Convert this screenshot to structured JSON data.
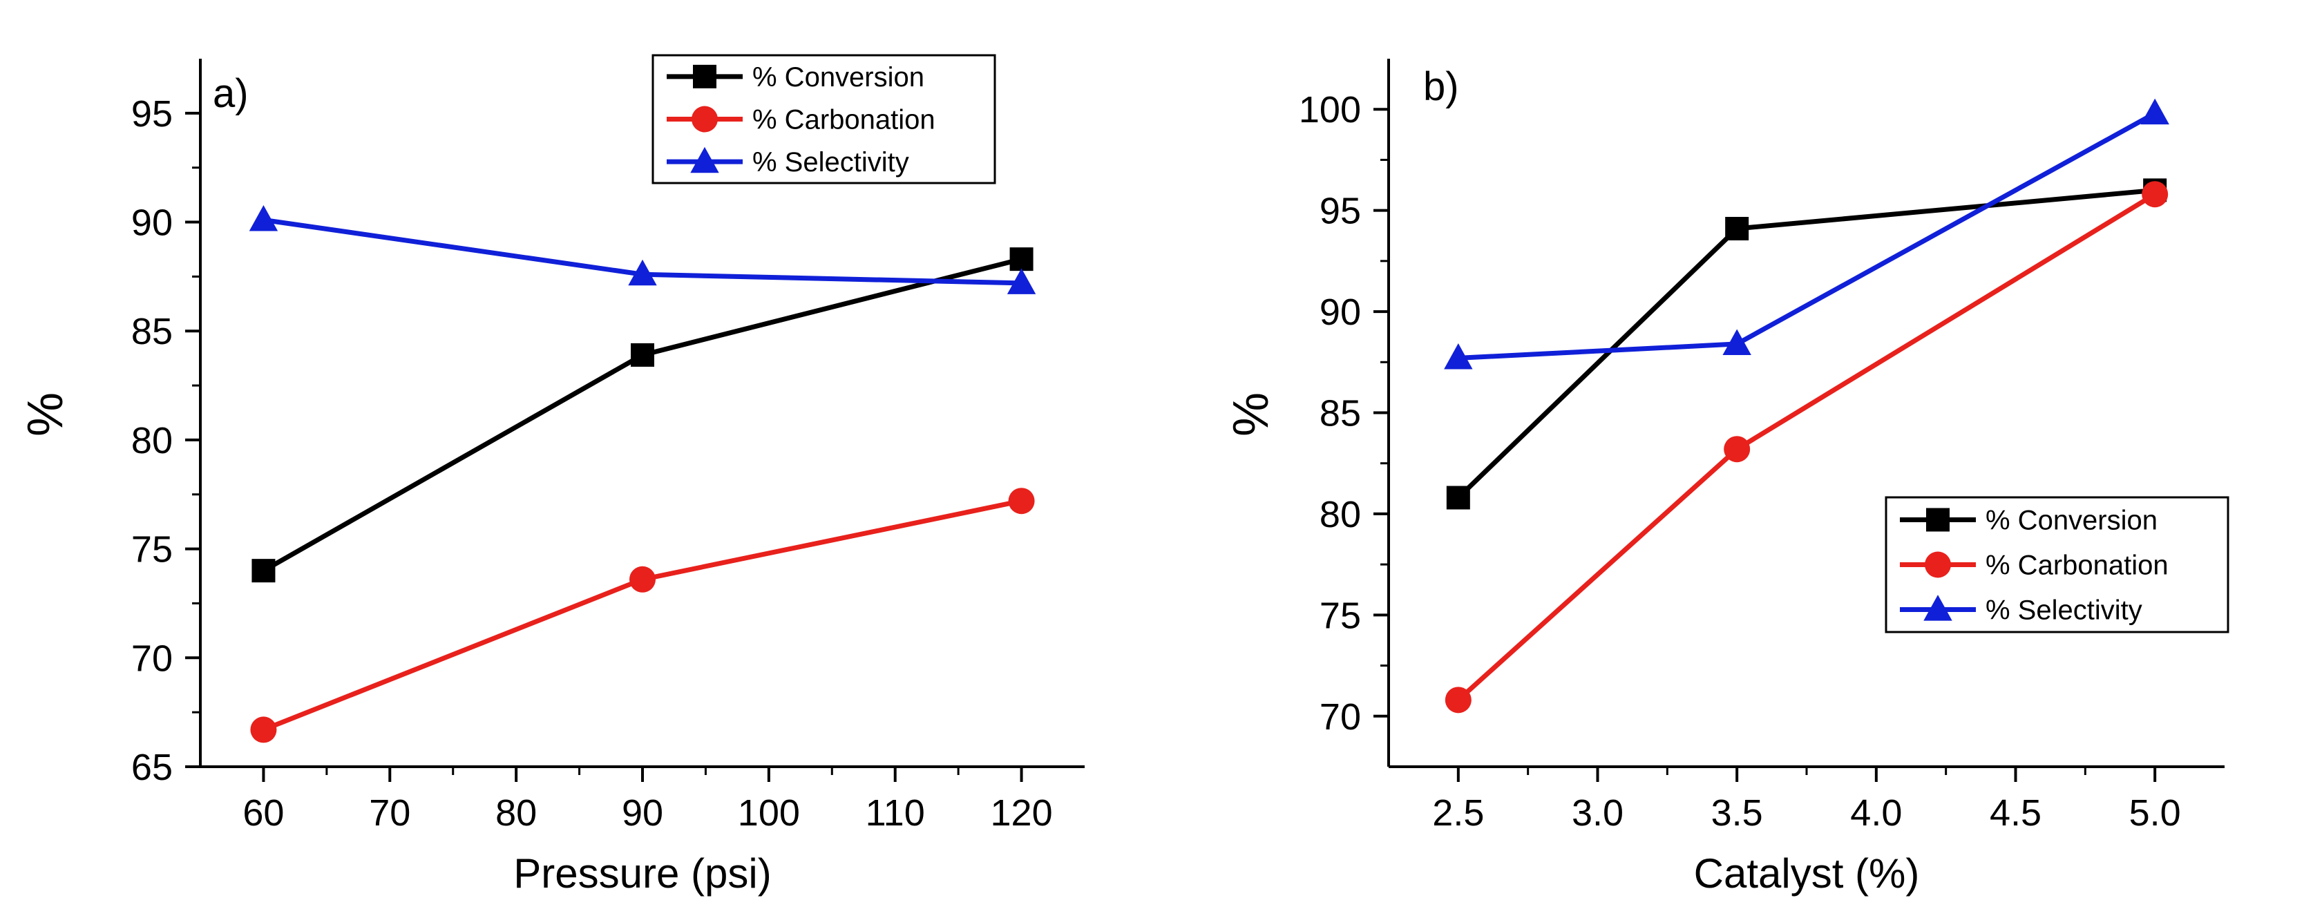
{
  "figure": {
    "colors": {
      "conversion": "#000000",
      "carbonation": "#e8211c",
      "selectivity": "#1020d8"
    }
  },
  "chart_data": [
    {
      "type": "line",
      "panel_label": "a)",
      "xlabel": "Pressure (psi)",
      "ylabel": "%",
      "xlim": [
        55,
        125
      ],
      "ylim": [
        65,
        97.5
      ],
      "xticks": [
        "60",
        "70",
        "80",
        "90",
        "100",
        "110",
        "120"
      ],
      "xtick_values": [
        60,
        70,
        80,
        90,
        100,
        110,
        120
      ],
      "yticks": [
        "65",
        "70",
        "75",
        "80",
        "85",
        "90",
        "95"
      ],
      "ytick_values": [
        65,
        70,
        75,
        80,
        85,
        90,
        95
      ],
      "legend_position": "top-right",
      "series": [
        {
          "name": "% Conversion",
          "marker": "square",
          "color": "#000000",
          "x": [
            60,
            90,
            120
          ],
          "y": [
            74.0,
            83.9,
            88.3
          ]
        },
        {
          "name": "% Carbonation",
          "marker": "circle",
          "color": "#e8211c",
          "x": [
            60,
            90,
            120
          ],
          "y": [
            66.7,
            73.6,
            77.2
          ]
        },
        {
          "name": "% Selectivity",
          "marker": "triangle",
          "color": "#1020d8",
          "x": [
            60,
            90,
            120
          ],
          "y": [
            90.1,
            87.6,
            87.2
          ]
        }
      ]
    },
    {
      "type": "line",
      "panel_label": "b)",
      "xlabel": "Catalyst (%)",
      "ylabel": "%",
      "xlim": [
        2.25,
        5.25
      ],
      "ylim": [
        67.5,
        102.5
      ],
      "xticks": [
        "2.5",
        "3.0",
        "3.5",
        "4.0",
        "4.5",
        "5.0"
      ],
      "xtick_values": [
        2.5,
        3.0,
        3.5,
        4.0,
        4.5,
        5.0
      ],
      "yticks": [
        "70",
        "75",
        "80",
        "85",
        "90",
        "95",
        "100"
      ],
      "ytick_values": [
        70,
        75,
        80,
        85,
        90,
        95,
        100
      ],
      "legend_position": "bottom-right",
      "series": [
        {
          "name": "% Conversion",
          "marker": "square",
          "color": "#000000",
          "x": [
            2.5,
            3.5,
            5.0
          ],
          "y": [
            80.8,
            94.1,
            96.0
          ]
        },
        {
          "name": "% Carbonation",
          "marker": "circle",
          "color": "#e8211c",
          "x": [
            2.5,
            3.5,
            5.0
          ],
          "y": [
            70.8,
            83.2,
            95.8
          ]
        },
        {
          "name": "% Selectivity",
          "marker": "triangle",
          "color": "#1020d8",
          "x": [
            2.5,
            3.5,
            5.0
          ],
          "y": [
            87.7,
            88.4,
            99.8
          ]
        }
      ]
    }
  ]
}
